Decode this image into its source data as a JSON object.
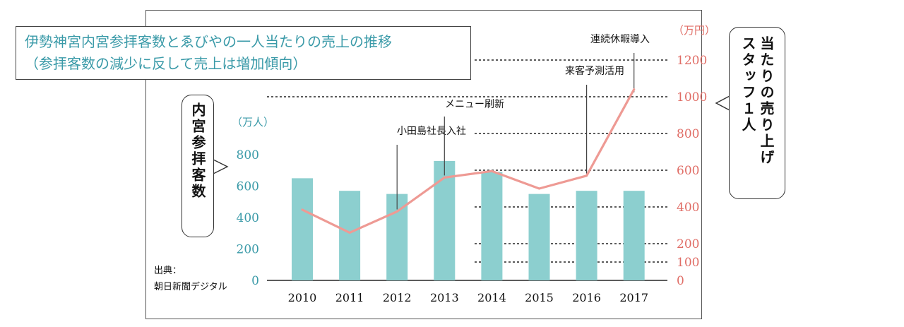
{
  "title": {
    "line1": "伊勢神宮内宮参拝客数とゑびやの一人当たりの売上の推移",
    "line2": "（参拝客数の減少に反して売上は増加傾向）"
  },
  "left_callout": "内宮参拝客数",
  "right_callout": {
    "line1": "スタッフ１人",
    "line2": "当たりの売り上げ"
  },
  "source": {
    "line1": "出典：",
    "line2": "朝日新聞デジタル"
  },
  "colors": {
    "bar": "#8ccfcf",
    "line": "#ee9a94",
    "left_axis": "#3a9aa8",
    "right_axis": "#e06d66"
  },
  "chart_data": {
    "type": "bar+line",
    "categories": [
      "2010",
      "2011",
      "2012",
      "2013",
      "2014",
      "2015",
      "2016",
      "2017"
    ],
    "series": [
      {
        "name": "内宮参拝客数",
        "axis": "left",
        "type": "bar",
        "values": [
          650,
          570,
          550,
          760,
          690,
          550,
          570,
          570
        ]
      },
      {
        "name": "スタッフ１人当たりの売り上げ",
        "axis": "right",
        "type": "line",
        "values": [
          385,
          260,
          375,
          560,
          595,
          500,
          570,
          1040
        ]
      }
    ],
    "left_axis": {
      "unit": "（万人）",
      "ylim": [
        0,
        800
      ],
      "ticks": [
        0,
        200,
        400,
        600,
        800
      ]
    },
    "right_axis": {
      "unit": "（万円）",
      "ylim": [
        0,
        1200
      ],
      "ticks": [
        0,
        100,
        200,
        400,
        600,
        800,
        1000,
        1200
      ]
    },
    "annotations": [
      {
        "label": "小田島社長入社",
        "year": "2012"
      },
      {
        "label": "メニュー刷新",
        "year": "2013"
      },
      {
        "label": "来客予測活用",
        "year": "2016"
      },
      {
        "label": "連続休暇導入",
        "year": "2017"
      }
    ],
    "grid": true
  }
}
